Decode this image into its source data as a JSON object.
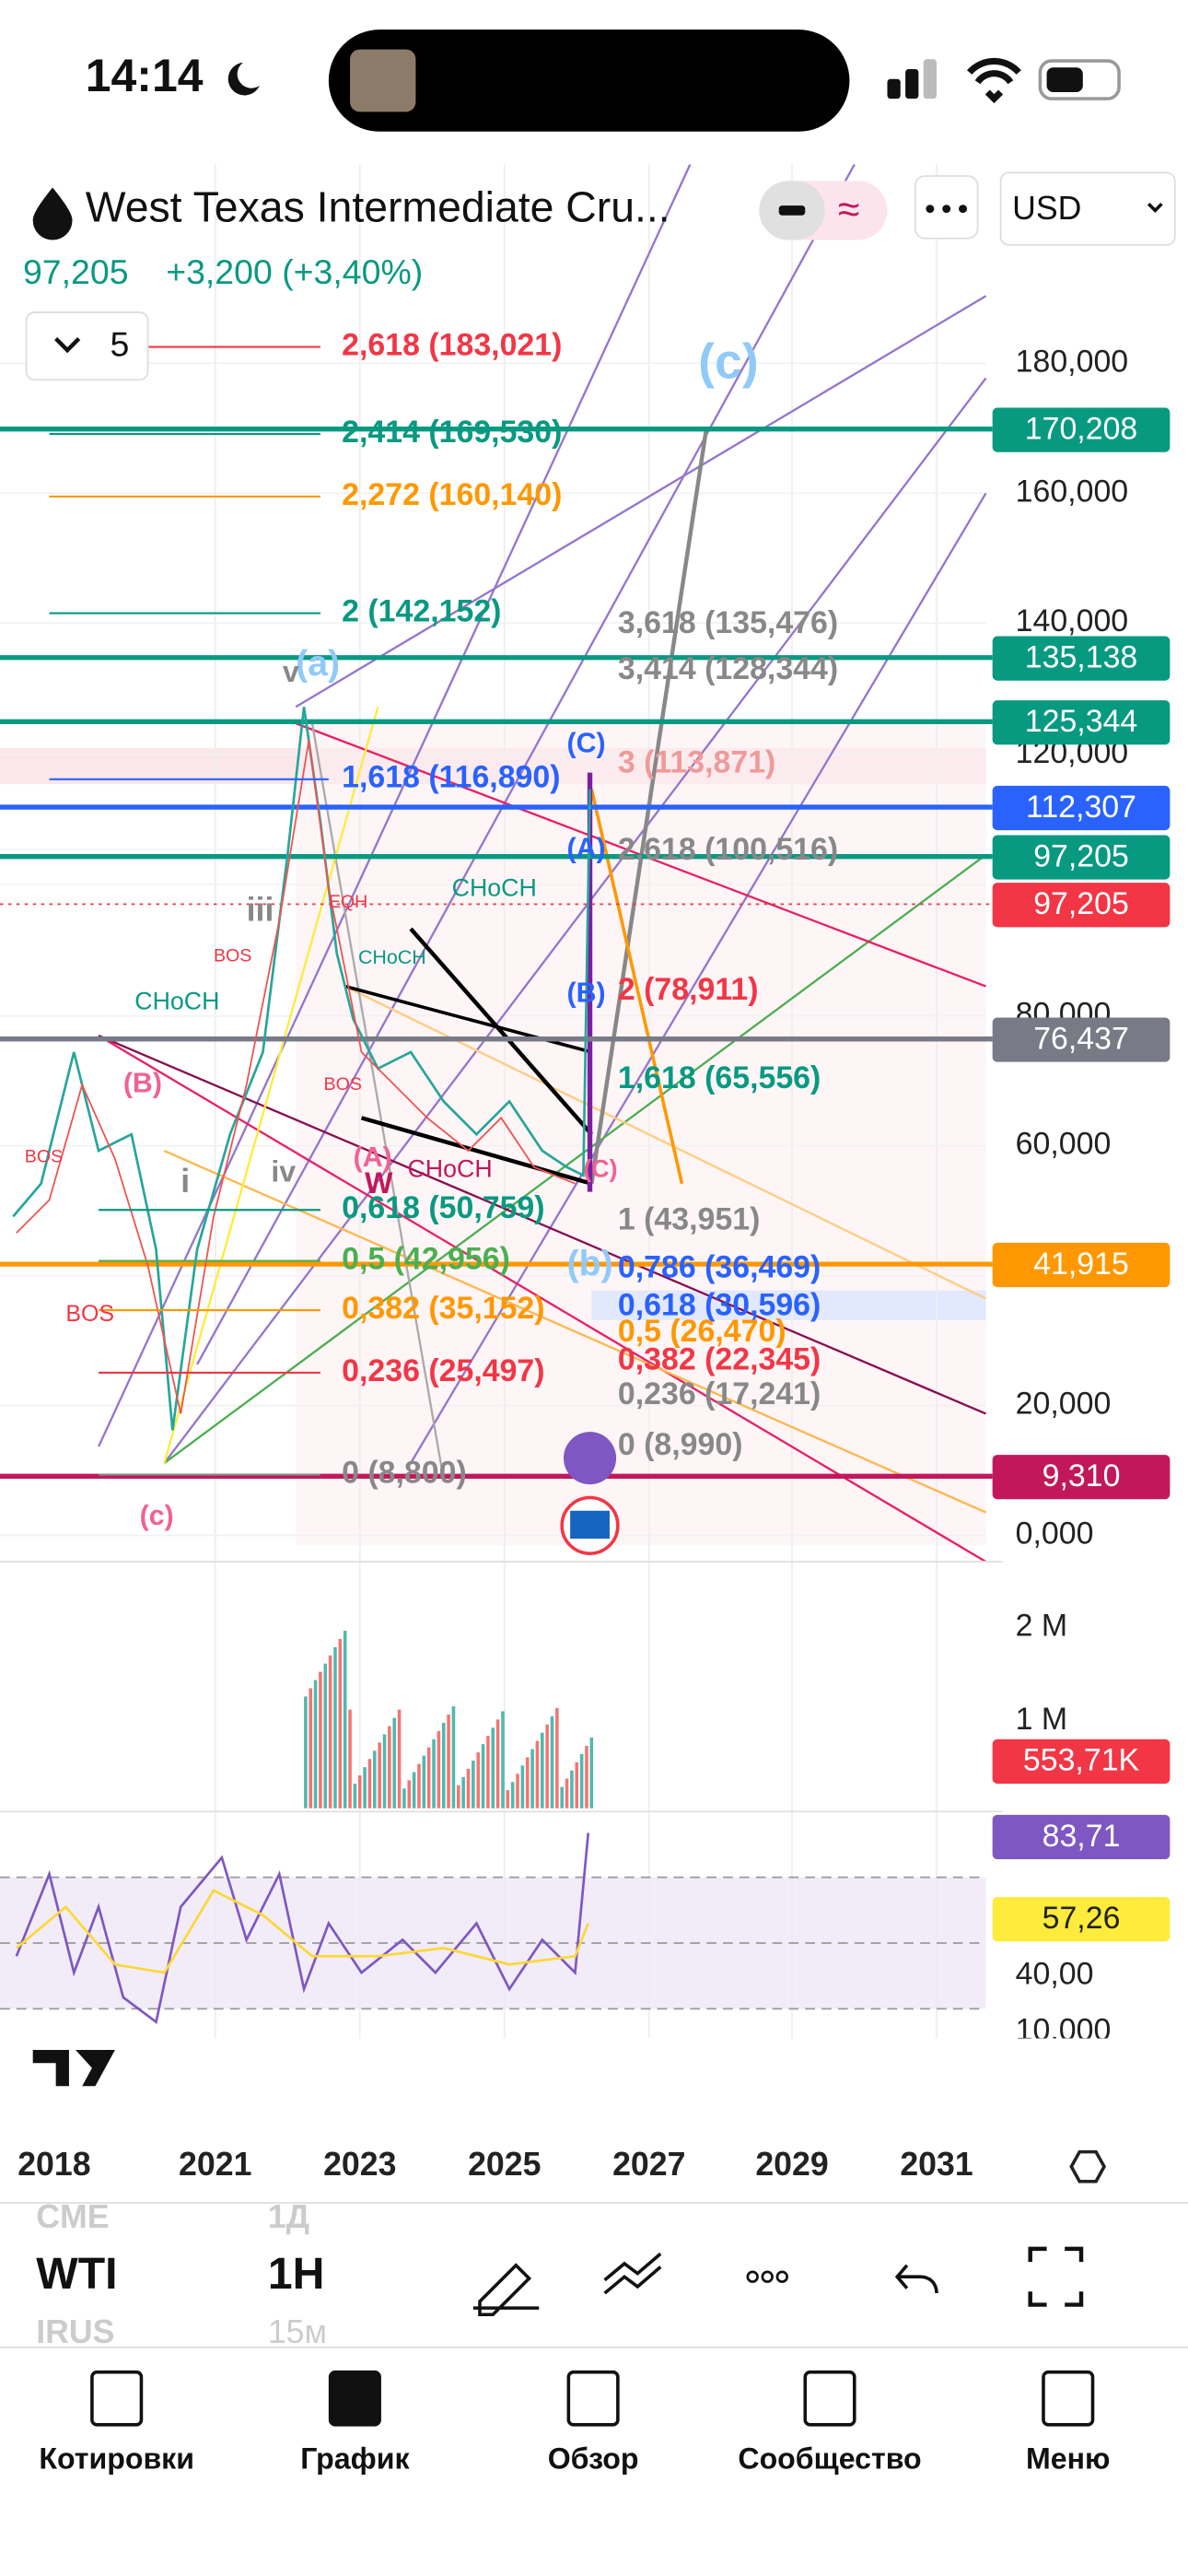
{
  "status_bar": {
    "time": "14:14"
  },
  "header": {
    "title": "West Texas Intermediate Cru...",
    "currency": "USD",
    "price": "97,205",
    "change": "+3,200 (+3,40%)",
    "layers": "5"
  },
  "fib_left": [
    "2,618 (183,021)",
    "2,414 (169,530)",
    "2,272 (160,140)",
    "2 (142,152)",
    "1,618 (116,890)",
    "0,618 (50,759)",
    "0,5 (42,956)",
    "0,382 (35,152)",
    "0,236 (25,497)",
    "0 (8,800)"
  ],
  "fib_right": [
    "3,618 (135,476)",
    "3,414 (128,344)",
    "3 (113,871)",
    "2,618 (100,516)",
    "2 (78,911)",
    "1,618 (65,556)",
    "1 (43,951)",
    "0,786 (36,469)",
    "0,618 (30,596)",
    "0,5 (26,470)",
    "0,382 (22,345)",
    "0,236 (17,241)",
    "0 (8,990)"
  ],
  "wave_labels": [
    "(c)",
    "(a)",
    "(C)",
    "(A)",
    "(B)",
    "(B)",
    "(A)",
    "(C)",
    "(b)",
    "(c)",
    "W",
    "i",
    "iii",
    "iv",
    "v"
  ],
  "annotations": [
    "CHoCH",
    "CHoCH",
    "CHoCH",
    "CHoCH",
    "BOS",
    "BOS",
    "BOS",
    "BOS",
    "EQH"
  ],
  "price_axis": [
    "180,000",
    "160,000",
    "140,000",
    "120,000",
    "80,000",
    "60,000",
    "20,000",
    "0,000"
  ],
  "price_badges": [
    "170,208",
    "135,138",
    "125,344",
    "112,307",
    "97,205",
    "97,205",
    "76,437",
    "41,915",
    "9,310"
  ],
  "volume_axis": [
    "2 M",
    "1 M"
  ],
  "volume_badge": "553,71K",
  "rsi_axis": [
    "40,00",
    "10,000"
  ],
  "rsi_badges": [
    "83,71",
    "57,26"
  ],
  "time_axis": [
    "2018",
    "2021",
    "2023",
    "2025",
    "2027",
    "2029",
    "2031"
  ],
  "toolbar": {
    "exchange": "CME",
    "symbol": "WTI",
    "alt_exchange": "IRUS",
    "interval_above": "1Д",
    "interval": "1H",
    "interval_below": "15м"
  },
  "tab_bar": [
    "Котировки",
    "График",
    "Обзор",
    "Сообщество",
    "Меню"
  ]
}
